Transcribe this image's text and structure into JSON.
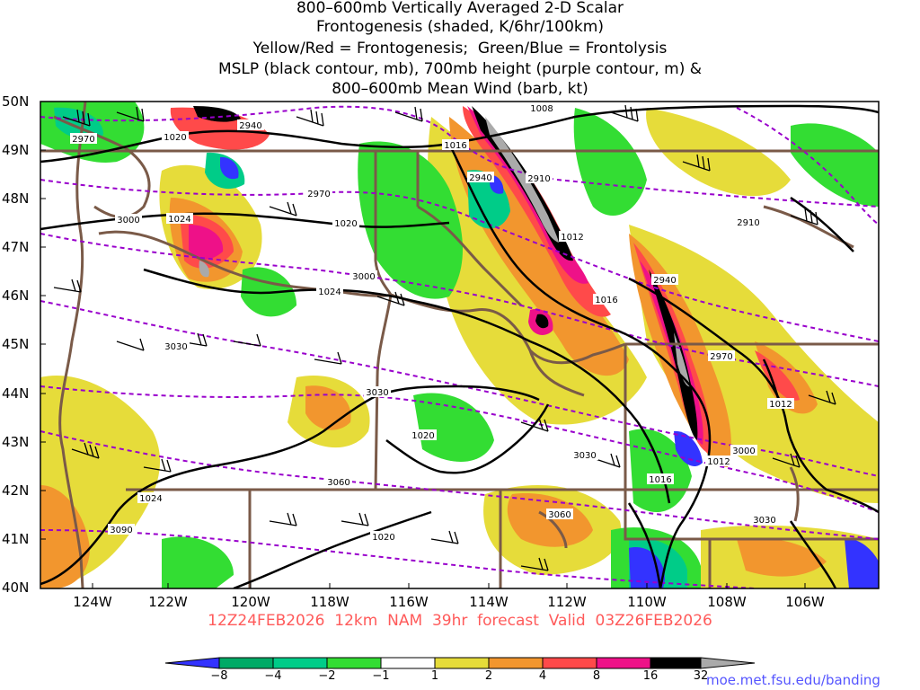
{
  "title_lines": [
    "800–600mb Vertically Averaged 2-D Scalar",
    "Frontogenesis (shaded, K/6hr/100km)",
    "Yellow/Red = Frontogenesis;  Green/Blue = Frontolysis",
    "MSLP (black contour, mb), 700mb height (purple contour, m) &",
    "800–600mb Mean Wind (barb, kt)"
  ],
  "lat_labels": [
    "50N",
    "49N",
    "48N",
    "47N",
    "46N",
    "45N",
    "44N",
    "43N",
    "42N",
    "41N",
    "40N"
  ],
  "lon_labels": [
    "124W",
    "122W",
    "120W",
    "118W",
    "116W",
    "114W",
    "112W",
    "110W",
    "108W",
    "106W"
  ],
  "footer": "12Z24FEB2026  12km  NAM  39hr  forecast  Valid  03Z26FEB2026",
  "url": "moe.met.fsu.edu/banding",
  "colorbar": {
    "ticks": [
      "−8",
      "−4",
      "−2",
      "−1",
      "1",
      "2",
      "4",
      "8",
      "16",
      "32"
    ],
    "colors": [
      "#3333ff",
      "#00aa66",
      "#00cc88",
      "#33dd33",
      "#ffffff",
      "#e6dc3a",
      "#f2962e",
      "#ff4a4a",
      "#ee1188",
      "#000000",
      "#aaaaaa"
    ]
  },
  "contour_labels": {
    "mslp": [
      "1008",
      "1020",
      "1016",
      "1024",
      "1020",
      "1024",
      "1016",
      "1012",
      "1012",
      "1016",
      "1020",
      "1024",
      "1020",
      "1012"
    ],
    "height": [
      "2970",
      "2940",
      "2940",
      "2910",
      "2970",
      "3000",
      "2910",
      "2940",
      "3030",
      "3030",
      "2970",
      "3000",
      "3060",
      "3030",
      "3060",
      "3090",
      "3030",
      "3000"
    ]
  }
}
